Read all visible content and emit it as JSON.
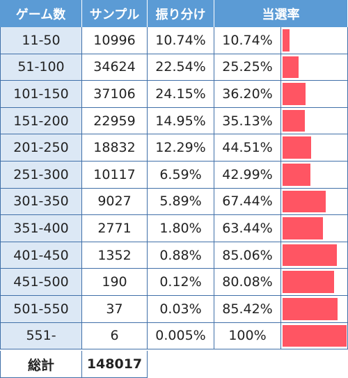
{
  "table": {
    "headers": [
      "ゲーム数",
      "サンプル",
      "振り分け",
      "当選率"
    ],
    "total_label": "総計",
    "total_value": "148017"
  },
  "colors": {
    "header_bg": "#5b9bd5",
    "range_bg": "#dce8f5",
    "bar": "#ff5563",
    "border": "#3f6fa8"
  },
  "chart_data": {
    "type": "table",
    "columns": [
      "ゲーム数",
      "サンプル",
      "振り分け",
      "当選率"
    ],
    "rows": [
      {
        "range": "11-50",
        "sample": "10996",
        "share": "10.74%",
        "rate": "10.74%",
        "rate_value": 10.74
      },
      {
        "range": "51-100",
        "sample": "34624",
        "share": "22.54%",
        "rate": "25.25%",
        "rate_value": 25.25
      },
      {
        "range": "101-150",
        "sample": "37106",
        "share": "24.15%",
        "rate": "36.20%",
        "rate_value": 36.2
      },
      {
        "range": "151-200",
        "sample": "22959",
        "share": "14.95%",
        "rate": "35.13%",
        "rate_value": 35.13
      },
      {
        "range": "201-250",
        "sample": "18832",
        "share": "12.29%",
        "rate": "44.51%",
        "rate_value": 44.51
      },
      {
        "range": "251-300",
        "sample": "10117",
        "share": "6.59%",
        "rate": "42.99%",
        "rate_value": 42.99
      },
      {
        "range": "301-350",
        "sample": "9027",
        "share": "5.89%",
        "rate": "67.44%",
        "rate_value": 67.44
      },
      {
        "range": "351-400",
        "sample": "2771",
        "share": "1.80%",
        "rate": "63.44%",
        "rate_value": 63.44
      },
      {
        "range": "401-450",
        "sample": "1352",
        "share": "0.88%",
        "rate": "85.06%",
        "rate_value": 85.06
      },
      {
        "range": "451-500",
        "sample": "190",
        "share": "0.12%",
        "rate": "80.08%",
        "rate_value": 80.08
      },
      {
        "range": "501-550",
        "sample": "37",
        "share": "0.03%",
        "rate": "85.42%",
        "rate_value": 85.42
      },
      {
        "range": "551-",
        "sample": "6",
        "share": "0.005%",
        "rate": "100%",
        "rate_value": 100
      }
    ],
    "bar_max": 100
  }
}
